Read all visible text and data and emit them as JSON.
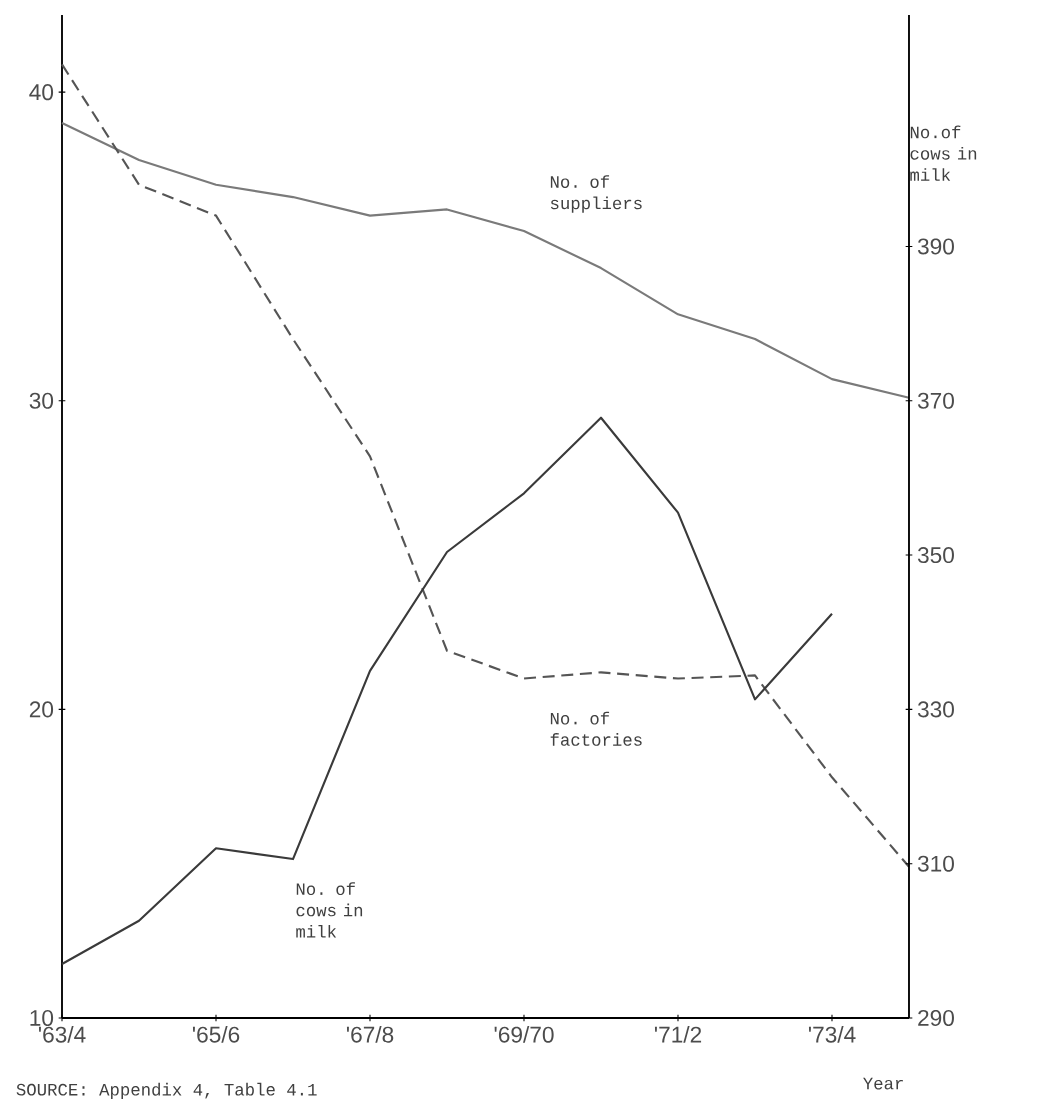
{
  "chart_data": {
    "type": "line",
    "categories": [
      "'63/4",
      null,
      "'65/6",
      null,
      "'67/8",
      null,
      "'69/70",
      null,
      "'71/2",
      null,
      "'73/4",
      null
    ],
    "xlabel": "Year",
    "y2label": "No.of cows in milk",
    "ylim": [
      10,
      42.5
    ],
    "yticks": [
      10,
      20,
      30,
      40
    ],
    "y2lim": [
      290,
      420
    ],
    "y2ticks": [
      290,
      310,
      330,
      350,
      370,
      390
    ],
    "series": [
      {
        "name": "No. of suppliers",
        "color": "#7a7a7a",
        "line_style": "solid",
        "values": [
          39.0,
          37.8,
          37.0,
          36.6,
          36.0,
          36.2,
          35.5,
          34.3,
          32.8,
          32.0,
          30.7,
          30.1
        ]
      },
      {
        "name": "No. of factories",
        "color": "#555555",
        "line_style": "dashed",
        "values": [
          40.9,
          37.0,
          36.0,
          32.0,
          28.2,
          21.9,
          21.0,
          21.2,
          21.0,
          21.1,
          17.8,
          14.9
        ]
      },
      {
        "name": "No. of cows in milk",
        "color": "#3a3a3a",
        "line_style": "solid",
        "axis": "y2",
        "values": [
          297,
          302.6,
          312,
          310.6,
          335,
          350.4,
          358,
          367.8,
          355.5,
          331.3,
          342.4,
          null
        ]
      }
    ],
    "annotations": [
      "SOURCE: Appendix 4, Table 4.1"
    ],
    "grid": false
  }
}
